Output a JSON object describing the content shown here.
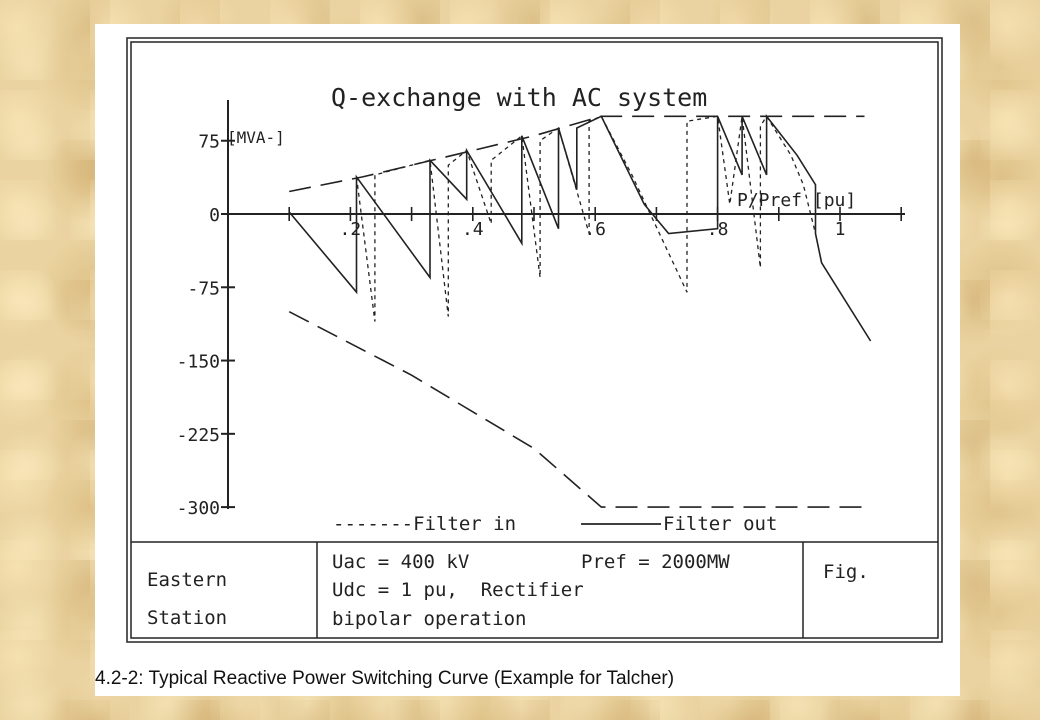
{
  "chart_data": {
    "type": "line",
    "title": "Q-exchange with AC system",
    "ylabel": "[MVA-]",
    "xlabel": "P/Pref [pu]",
    "xlim": [
      0,
      1.1
    ],
    "ylim": [
      -300,
      100
    ],
    "xticks": [
      {
        "v": 0.2,
        "label": ".2"
      },
      {
        "v": 0.4,
        "label": ".4"
      },
      {
        "v": 0.6,
        "label": ".6"
      },
      {
        "v": 0.8,
        "label": ".8"
      },
      {
        "v": 1.0,
        "label": "1"
      }
    ],
    "yticks": [
      {
        "v": 75,
        "label": "75"
      },
      {
        "v": 0,
        "label": "0"
      },
      {
        "v": -75,
        "label": "-75"
      },
      {
        "v": -150,
        "label": "-150"
      },
      {
        "v": -225,
        "label": "-225"
      },
      {
        "v": -300,
        "label": "-300"
      }
    ],
    "legend": {
      "filter_in": "-------Filter in",
      "filter_out": "Filter out"
    },
    "series": [
      {
        "id": "upper-limit",
        "style": "long-dash",
        "points": [
          [
            0.1,
            23
          ],
          [
            0.22,
            38
          ],
          [
            0.4,
            65
          ],
          [
            0.5,
            80
          ],
          [
            0.61,
            100
          ],
          [
            1.04,
            100
          ]
        ]
      },
      {
        "id": "lower-limit",
        "style": "long-dash",
        "points": [
          [
            0.1,
            -100
          ],
          [
            0.3,
            -165
          ],
          [
            0.5,
            -240
          ],
          [
            0.61,
            -300
          ],
          [
            1.04,
            -300
          ]
        ]
      },
      {
        "id": "filter-out",
        "style": "solid",
        "points": [
          [
            0.1,
            2
          ],
          [
            0.21,
            -80
          ],
          [
            0.21,
            38
          ],
          [
            0.33,
            -65
          ],
          [
            0.33,
            55
          ],
          [
            0.39,
            15
          ],
          [
            0.39,
            65
          ],
          [
            0.48,
            -30
          ],
          [
            0.48,
            80
          ],
          [
            0.54,
            -15
          ],
          [
            0.54,
            88
          ],
          [
            0.57,
            25
          ],
          [
            0.57,
            88
          ],
          [
            0.61,
            100
          ],
          [
            0.68,
            10
          ],
          [
            0.72,
            -20
          ],
          [
            0.8,
            -15
          ],
          [
            0.8,
            100
          ],
          [
            0.84,
            40
          ],
          [
            0.84,
            100
          ],
          [
            0.88,
            40
          ],
          [
            0.88,
            100
          ],
          [
            0.93,
            60
          ],
          [
            0.96,
            30
          ],
          [
            0.96,
            -20
          ],
          [
            0.97,
            -50
          ],
          [
            1.05,
            -130
          ]
        ]
      },
      {
        "id": "filter-in",
        "style": "short-dash",
        "points": [
          [
            0.21,
            38
          ],
          [
            0.24,
            -110
          ],
          [
            0.24,
            40
          ],
          [
            0.33,
            55
          ],
          [
            0.36,
            -105
          ],
          [
            0.36,
            50
          ],
          [
            0.39,
            65
          ],
          [
            0.43,
            -10
          ],
          [
            0.43,
            55
          ],
          [
            0.48,
            80
          ],
          [
            0.51,
            -65
          ],
          [
            0.51,
            75
          ],
          [
            0.54,
            88
          ],
          [
            0.59,
            -20
          ],
          [
            0.59,
            95
          ],
          [
            0.61,
            100
          ],
          [
            0.66,
            40
          ],
          [
            0.75,
            -80
          ],
          [
            0.75,
            95
          ],
          [
            0.8,
            100
          ],
          [
            0.82,
            10
          ],
          [
            0.84,
            100
          ],
          [
            0.87,
            -55
          ],
          [
            0.87,
            90
          ],
          [
            0.88,
            100
          ],
          [
            0.92,
            60
          ],
          [
            0.94,
            30
          ],
          [
            0.96,
            -20
          ]
        ]
      }
    ]
  },
  "info_table": {
    "station_line1": "Eastern",
    "station_line2": "Station",
    "params_line1a": "Uac = 400 kV",
    "params_line1b": "Pref = 2000MW",
    "params_line2": "Udc = 1 pu,  Rectifier",
    "params_line3": "bipolar operation",
    "fig_label": "Fig."
  },
  "caption": "4.2-2: Typical Reactive Power Switching Curve (Example for Talcher)"
}
